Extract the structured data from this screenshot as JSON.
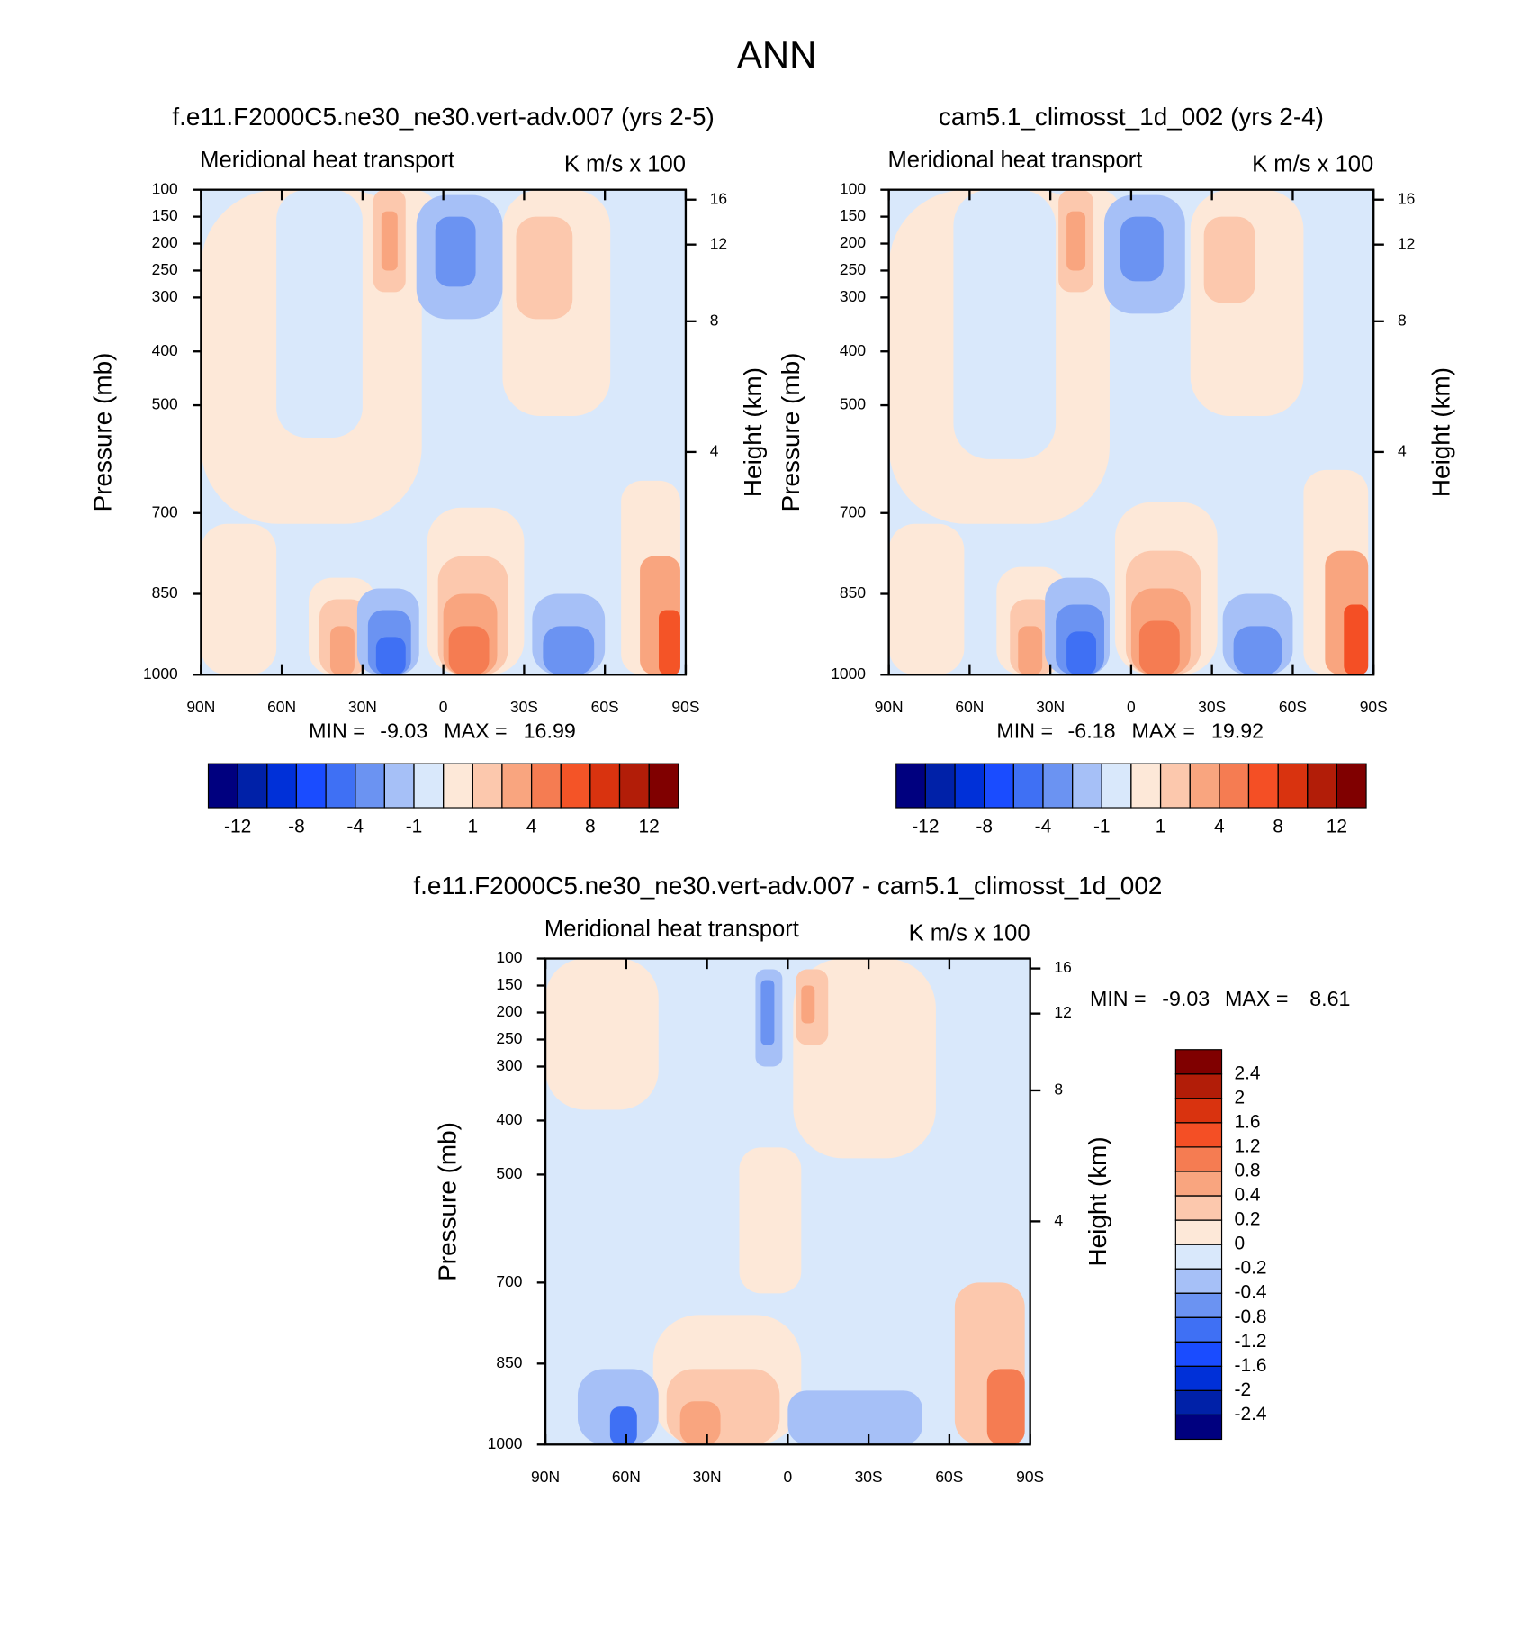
{
  "title": "ANN",
  "chart_data": [
    {
      "type": "contour",
      "title": "f.e11.F2000C5.ne30_ne30.vert-adv.007 (yrs 2-5)",
      "left_label": "Meridional heat transport",
      "right_label": "K m/s x 100",
      "ylabel": "Pressure (mb)",
      "y2label": "Height (km)",
      "xlim": [
        90,
        -90
      ],
      "xticks": [
        {
          "value": 90,
          "label": "90N"
        },
        {
          "value": 60,
          "label": "60N"
        },
        {
          "value": 30,
          "label": "30N"
        },
        0,
        {
          "value": -30,
          "label": "30S"
        },
        {
          "value": -60,
          "label": "60S"
        },
        {
          "value": -90,
          "label": "90S"
        }
      ],
      "ylim": [
        1000,
        100
      ],
      "yticks": [
        100,
        150,
        200,
        250,
        300,
        400,
        500,
        700,
        850,
        1000
      ],
      "y2ticks": [
        16,
        12,
        8,
        4
      ],
      "min_label": "MIN =",
      "min": -9.03,
      "max_label": "MAX =",
      "max": 16.99,
      "colorbar_orientation": "horizontal",
      "levels": [
        -12,
        -10,
        -8,
        -6,
        -4,
        -2,
        -1,
        0,
        1,
        2,
        4,
        6,
        8,
        10,
        12
      ],
      "level_ticks": [
        -12,
        -8,
        -4,
        -1,
        1,
        4,
        8,
        12
      ],
      "colors": [
        "#00007f",
        "#0021a8",
        "#0030d8",
        "#1a4cff",
        "#3f70f4",
        "#6b93f2",
        "#a6c0f7",
        "#d9e8fb",
        "#fde8d8",
        "#fcc8ad",
        "#f9a57f",
        "#f57c52",
        "#f45427",
        "#d9330f",
        "#b21d08",
        "#800000"
      ],
      "background": -0.5,
      "regions": [
        {
          "lat": [
            90,
            8
          ],
          "p": [
            100,
            720
          ],
          "value": 0.5
        },
        {
          "lat": [
            62,
            30
          ],
          "p": [
            100,
            560
          ],
          "value": -0.5
        },
        {
          "lat": [
            90,
            62
          ],
          "p": [
            720,
            1000
          ],
          "value": 0.5
        },
        {
          "lat": [
            28,
            2
          ],
          "p": [
            100,
            320
          ],
          "value": 0.5
        },
        {
          "lat": [
            -22,
            -62
          ],
          "p": [
            100,
            520
          ],
          "value": 0.5
        },
        {
          "lat": [
            26,
            14
          ],
          "p": [
            100,
            290
          ],
          "value": 1.5
        },
        {
          "lat": [
            23,
            17
          ],
          "p": [
            140,
            250
          ],
          "value": 3
        },
        {
          "lat": [
            10,
            -22
          ],
          "p": [
            110,
            340
          ],
          "value": -1.5
        },
        {
          "lat": [
            3,
            -12
          ],
          "p": [
            150,
            280
          ],
          "value": -3
        },
        {
          "lat": [
            -27,
            -48
          ],
          "p": [
            150,
            340
          ],
          "value": 1.5
        },
        {
          "lat": [
            50,
            25
          ],
          "p": [
            820,
            1000
          ],
          "value": 0.5
        },
        {
          "lat": [
            46,
            28
          ],
          "p": [
            860,
            1000
          ],
          "value": 1.5
        },
        {
          "lat": [
            42,
            33
          ],
          "p": [
            910,
            1000
          ],
          "value": 3
        },
        {
          "lat": [
            32,
            9
          ],
          "p": [
            840,
            1000
          ],
          "value": -1.5
        },
        {
          "lat": [
            28,
            12
          ],
          "p": [
            880,
            1000
          ],
          "value": -3
        },
        {
          "lat": [
            25,
            14
          ],
          "p": [
            930,
            1000
          ],
          "value": -5
        },
        {
          "lat": [
            6,
            -30
          ],
          "p": [
            690,
            1000
          ],
          "value": 0.5
        },
        {
          "lat": [
            2,
            -24
          ],
          "p": [
            780,
            1000
          ],
          "value": 1.5
        },
        {
          "lat": [
            0,
            -20
          ],
          "p": [
            850,
            1000
          ],
          "value": 3
        },
        {
          "lat": [
            -2,
            -17
          ],
          "p": [
            910,
            1000
          ],
          "value": 5
        },
        {
          "lat": [
            -33,
            -60
          ],
          "p": [
            850,
            1000
          ],
          "value": -1.5
        },
        {
          "lat": [
            -37,
            -56
          ],
          "p": [
            910,
            1000
          ],
          "value": -3
        },
        {
          "lat": [
            -66,
            -88
          ],
          "p": [
            640,
            1000
          ],
          "value": 0.5
        },
        {
          "lat": [
            -73,
            -88
          ],
          "p": [
            780,
            1000
          ],
          "value": 3
        },
        {
          "lat": [
            -80,
            -88
          ],
          "p": [
            880,
            1000
          ],
          "value": 7
        }
      ]
    },
    {
      "type": "contour",
      "title": "cam5.1_climosst_1d_002 (yrs 2-4)",
      "left_label": "Meridional heat transport",
      "right_label": "K m/s x 100",
      "ylabel": "Pressure (mb)",
      "y2label": "Height (km)",
      "xlim": [
        90,
        -90
      ],
      "xticks": [
        {
          "value": 90,
          "label": "90N"
        },
        {
          "value": 60,
          "label": "60N"
        },
        {
          "value": 30,
          "label": "30N"
        },
        0,
        {
          "value": -30,
          "label": "30S"
        },
        {
          "value": -60,
          "label": "60S"
        },
        {
          "value": -90,
          "label": "90S"
        }
      ],
      "ylim": [
        1000,
        100
      ],
      "yticks": [
        100,
        150,
        200,
        250,
        300,
        400,
        500,
        700,
        850,
        1000
      ],
      "y2ticks": [
        16,
        12,
        8,
        4
      ],
      "min_label": "MIN =",
      "min": -6.18,
      "max_label": "MAX =",
      "max": 19.92,
      "colorbar_orientation": "horizontal",
      "levels": [
        -12,
        -10,
        -8,
        -6,
        -4,
        -2,
        -1,
        0,
        1,
        2,
        4,
        6,
        8,
        10,
        12
      ],
      "level_ticks": [
        -12,
        -8,
        -4,
        -1,
        1,
        4,
        8,
        12
      ],
      "colors": [
        "#00007f",
        "#0021a8",
        "#0030d8",
        "#1a4cff",
        "#3f70f4",
        "#6b93f2",
        "#a6c0f7",
        "#d9e8fb",
        "#fde8d8",
        "#fcc8ad",
        "#f9a57f",
        "#f57c52",
        "#f44f25",
        "#d9330f",
        "#b21d08",
        "#800000"
      ],
      "background": -0.5,
      "regions": [
        {
          "lat": [
            90,
            8
          ],
          "p": [
            100,
            720
          ],
          "value": 0.5
        },
        {
          "lat": [
            66,
            28
          ],
          "p": [
            100,
            600
          ],
          "value": -0.5
        },
        {
          "lat": [
            90,
            62
          ],
          "p": [
            720,
            1000
          ],
          "value": 0.5
        },
        {
          "lat": [
            27,
            4
          ],
          "p": [
            100,
            320
          ],
          "value": 0.5
        },
        {
          "lat": [
            -22,
            -64
          ],
          "p": [
            100,
            520
          ],
          "value": 0.5
        },
        {
          "lat": [
            27,
            14
          ],
          "p": [
            100,
            290
          ],
          "value": 1.5
        },
        {
          "lat": [
            24,
            17
          ],
          "p": [
            140,
            250
          ],
          "value": 3
        },
        {
          "lat": [
            10,
            -20
          ],
          "p": [
            110,
            330
          ],
          "value": -1.5
        },
        {
          "lat": [
            4,
            -12
          ],
          "p": [
            150,
            270
          ],
          "value": -3
        },
        {
          "lat": [
            -27,
            -46
          ],
          "p": [
            150,
            310
          ],
          "value": 1.5
        },
        {
          "lat": [
            50,
            24
          ],
          "p": [
            800,
            1000
          ],
          "value": 0.5
        },
        {
          "lat": [
            45,
            28
          ],
          "p": [
            860,
            1000
          ],
          "value": 1.5
        },
        {
          "lat": [
            42,
            33
          ],
          "p": [
            910,
            1000
          ],
          "value": 3
        },
        {
          "lat": [
            32,
            8
          ],
          "p": [
            820,
            1000
          ],
          "value": -1.5
        },
        {
          "lat": [
            28,
            10
          ],
          "p": [
            870,
            1000
          ],
          "value": -3
        },
        {
          "lat": [
            24,
            13
          ],
          "p": [
            920,
            1000
          ],
          "value": -5
        },
        {
          "lat": [
            6,
            -32
          ],
          "p": [
            680,
            1000
          ],
          "value": 0.5
        },
        {
          "lat": [
            2,
            -26
          ],
          "p": [
            770,
            1000
          ],
          "value": 1.5
        },
        {
          "lat": [
            0,
            -22
          ],
          "p": [
            840,
            1000
          ],
          "value": 3
        },
        {
          "lat": [
            -3,
            -18
          ],
          "p": [
            900,
            1000
          ],
          "value": 5
        },
        {
          "lat": [
            -34,
            -60
          ],
          "p": [
            850,
            1000
          ],
          "value": -1.5
        },
        {
          "lat": [
            -38,
            -56
          ],
          "p": [
            910,
            1000
          ],
          "value": -3
        },
        {
          "lat": [
            -64,
            -88
          ],
          "p": [
            620,
            1000
          ],
          "value": 0.5
        },
        {
          "lat": [
            -72,
            -88
          ],
          "p": [
            770,
            1000
          ],
          "value": 3
        },
        {
          "lat": [
            -79,
            -88
          ],
          "p": [
            870,
            1000
          ],
          "value": 7
        }
      ]
    },
    {
      "type": "contour",
      "title": "f.e11.F2000C5.ne30_ne30.vert-adv.007 - cam5.1_climosst_1d_002",
      "left_label": "Meridional heat transport",
      "right_label": "K m/s x 100",
      "ylabel": "Pressure (mb)",
      "y2label": "Height (km)",
      "xlim": [
        90,
        -90
      ],
      "xticks": [
        {
          "value": 90,
          "label": "90N"
        },
        {
          "value": 60,
          "label": "60N"
        },
        {
          "value": 30,
          "label": "30N"
        },
        0,
        {
          "value": -30,
          "label": "30S"
        },
        {
          "value": -60,
          "label": "60S"
        },
        {
          "value": -90,
          "label": "90S"
        }
      ],
      "ylim": [
        1000,
        100
      ],
      "yticks": [
        100,
        150,
        200,
        250,
        300,
        400,
        500,
        700,
        850,
        1000
      ],
      "y2ticks": [
        16,
        12,
        8,
        4
      ],
      "min_label": "MIN =",
      "min": -9.03,
      "max_label": "MAX =",
      "max": 8.61,
      "colorbar_orientation": "vertical",
      "levels": [
        -2.4,
        -2,
        -1.6,
        -1.2,
        -0.8,
        -0.4,
        -0.2,
        0,
        0.2,
        0.4,
        0.8,
        1.2,
        1.6,
        2,
        2.4
      ],
      "colors": [
        "#00007f",
        "#0021a8",
        "#0030d8",
        "#1a4cff",
        "#3f70f4",
        "#6b93f2",
        "#a6c0f7",
        "#d9e8fb",
        "#fde8d8",
        "#fcc8ad",
        "#f9a57f",
        "#f57c52",
        "#f44f25",
        "#d9330f",
        "#b21d08",
        "#800000"
      ],
      "background": -0.1,
      "regions": [
        {
          "lat": [
            90,
            48
          ],
          "p": [
            100,
            380
          ],
          "value": 0.1
        },
        {
          "lat": [
            -2,
            -55
          ],
          "p": [
            100,
            470
          ],
          "value": 0.1
        },
        {
          "lat": [
            18,
            -5
          ],
          "p": [
            450,
            720
          ],
          "value": 0.1
        },
        {
          "lat": [
            12,
            2
          ],
          "p": [
            120,
            300
          ],
          "value": -0.3
        },
        {
          "lat": [
            10,
            5
          ],
          "p": [
            140,
            260
          ],
          "value": -0.6
        },
        {
          "lat": [
            -3,
            -15
          ],
          "p": [
            120,
            260
          ],
          "value": 0.3
        },
        {
          "lat": [
            -5,
            -10
          ],
          "p": [
            150,
            220
          ],
          "value": 0.6
        },
        {
          "lat": [
            50,
            -5
          ],
          "p": [
            760,
            1000
          ],
          "value": 0.1
        },
        {
          "lat": [
            45,
            3
          ],
          "p": [
            860,
            1000
          ],
          "value": 0.3
        },
        {
          "lat": [
            40,
            25
          ],
          "p": [
            920,
            1000
          ],
          "value": 0.6
        },
        {
          "lat": [
            78,
            48
          ],
          "p": [
            860,
            1000
          ],
          "value": -0.3
        },
        {
          "lat": [
            66,
            56
          ],
          "p": [
            930,
            1000
          ],
          "value": -1
        },
        {
          "lat": [
            0,
            -50
          ],
          "p": [
            900,
            1000
          ],
          "value": -0.3
        },
        {
          "lat": [
            -62,
            -88
          ],
          "p": [
            700,
            1000
          ],
          "value": 0.3
        },
        {
          "lat": [
            -74,
            -88
          ],
          "p": [
            860,
            1000
          ],
          "value": 1
        }
      ]
    }
  ]
}
